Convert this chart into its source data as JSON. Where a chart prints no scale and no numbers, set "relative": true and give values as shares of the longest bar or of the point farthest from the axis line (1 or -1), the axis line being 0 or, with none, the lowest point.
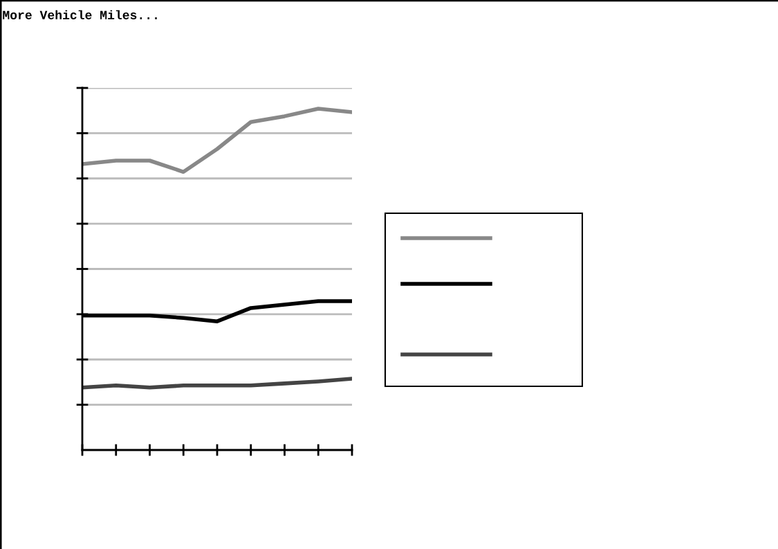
{
  "chart_data": {
    "type": "line",
    "title": "More Vehicle Miles...",
    "relative": true,
    "grid": "y",
    "marker": "none",
    "line_style": "solid",
    "categories": [
      null,
      null,
      null,
      null,
      null,
      null,
      null,
      null,
      null
    ],
    "series": [
      {
        "color": "#888888",
        "values": [
          0.838,
          0.848,
          0.848,
          0.815,
          0.882,
          0.961,
          0.978,
          1,
          0.99
        ]
      },
      {
        "color": "#000000",
        "values": [
          0.394,
          0.394,
          0.394,
          0.387,
          0.377,
          0.416,
          0.426,
          0.436,
          0.436
        ]
      },
      {
        "color": "#444444",
        "values": [
          0.183,
          0.189,
          0.183,
          0.189,
          0.189,
          0.189,
          0.195,
          0.201,
          0.209
        ]
      }
    ]
  }
}
